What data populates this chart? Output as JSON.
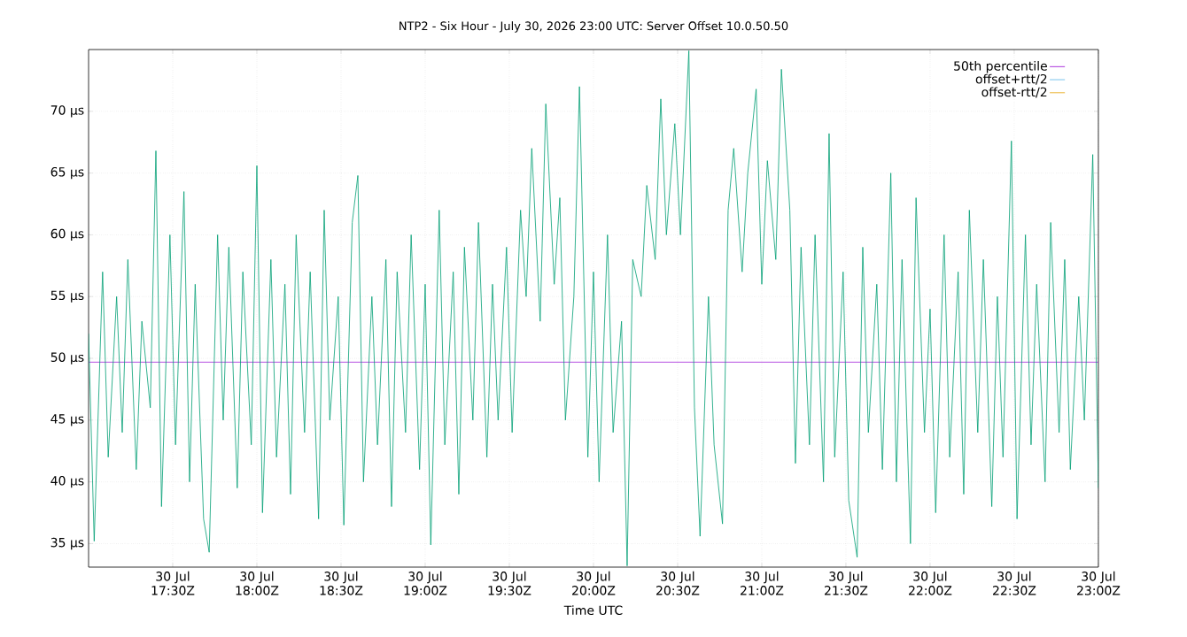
{
  "chart_data": {
    "type": "line",
    "title": "NTP2 - Six Hour - July 30, 2026 23:00 UTC: Server Offset 10.0.50.50",
    "xlabel": "Time UTC",
    "x": [
      "2026-07-30T17:00",
      "2026-07-30T17:02",
      "2026-07-30T17:05",
      "2026-07-30T17:07",
      "2026-07-30T17:10",
      "2026-07-30T17:12",
      "2026-07-30T17:14",
      "2026-07-30T17:17",
      "2026-07-30T17:19",
      "2026-07-30T17:22",
      "2026-07-30T17:24",
      "2026-07-30T17:26",
      "2026-07-30T17:29",
      "2026-07-30T17:31",
      "2026-07-30T17:34",
      "2026-07-30T17:36",
      "2026-07-30T17:38",
      "2026-07-30T17:41",
      "2026-07-30T17:43",
      "2026-07-30T17:46",
      "2026-07-30T17:48",
      "2026-07-30T17:50",
      "2026-07-30T17:53",
      "2026-07-30T17:55",
      "2026-07-30T17:58",
      "2026-07-30T18:00",
      "2026-07-30T18:02",
      "2026-07-30T18:05",
      "2026-07-30T18:07",
      "2026-07-30T18:10",
      "2026-07-30T18:12",
      "2026-07-30T18:14",
      "2026-07-30T18:17",
      "2026-07-30T18:19",
      "2026-07-30T18:22",
      "2026-07-30T18:24",
      "2026-07-30T18:26",
      "2026-07-30T18:29",
      "2026-07-30T18:31",
      "2026-07-30T18:34",
      "2026-07-30T18:36",
      "2026-07-30T18:38",
      "2026-07-30T18:41",
      "2026-07-30T18:43",
      "2026-07-30T18:46",
      "2026-07-30T18:48",
      "2026-07-30T18:50",
      "2026-07-30T18:53",
      "2026-07-30T18:55",
      "2026-07-30T18:58",
      "2026-07-30T19:00",
      "2026-07-30T19:02",
      "2026-07-30T19:05",
      "2026-07-30T19:07",
      "2026-07-30T19:10",
      "2026-07-30T19:12",
      "2026-07-30T19:14",
      "2026-07-30T19:17",
      "2026-07-30T19:19",
      "2026-07-30T19:22",
      "2026-07-30T19:24",
      "2026-07-30T19:26",
      "2026-07-30T19:29",
      "2026-07-30T19:31",
      "2026-07-30T19:34",
      "2026-07-30T19:36",
      "2026-07-30T19:38",
      "2026-07-30T19:41",
      "2026-07-30T19:43",
      "2026-07-30T19:46",
      "2026-07-30T19:48",
      "2026-07-30T19:50",
      "2026-07-30T19:53",
      "2026-07-30T19:55",
      "2026-07-30T19:58",
      "2026-07-30T20:00",
      "2026-07-30T20:02",
      "2026-07-30T20:05",
      "2026-07-30T20:07",
      "2026-07-30T20:10",
      "2026-07-30T20:12",
      "2026-07-30T20:14",
      "2026-07-30T20:17",
      "2026-07-30T20:19",
      "2026-07-30T20:22",
      "2026-07-30T20:24",
      "2026-07-30T20:26",
      "2026-07-30T20:29",
      "2026-07-30T20:31",
      "2026-07-30T20:34",
      "2026-07-30T20:36",
      "2026-07-30T20:38",
      "2026-07-30T20:41",
      "2026-07-30T20:43",
      "2026-07-30T20:46",
      "2026-07-30T20:48",
      "2026-07-30T20:50",
      "2026-07-30T20:53",
      "2026-07-30T20:55",
      "2026-07-30T20:58",
      "2026-07-30T21:00",
      "2026-07-30T21:02",
      "2026-07-30T21:05",
      "2026-07-30T21:07",
      "2026-07-30T21:10",
      "2026-07-30T21:12",
      "2026-07-30T21:14",
      "2026-07-30T21:17",
      "2026-07-30T21:19",
      "2026-07-30T21:22",
      "2026-07-30T21:24",
      "2026-07-30T21:26",
      "2026-07-30T21:29",
      "2026-07-30T21:31",
      "2026-07-30T21:34",
      "2026-07-30T21:36",
      "2026-07-30T21:38",
      "2026-07-30T21:41",
      "2026-07-30T21:43",
      "2026-07-30T21:46",
      "2026-07-30T21:48",
      "2026-07-30T21:50",
      "2026-07-30T21:53",
      "2026-07-30T21:55",
      "2026-07-30T21:58",
      "2026-07-30T22:00",
      "2026-07-30T22:02",
      "2026-07-30T22:05",
      "2026-07-30T22:07",
      "2026-07-30T22:10",
      "2026-07-30T22:12",
      "2026-07-30T22:14",
      "2026-07-30T22:17",
      "2026-07-30T22:19",
      "2026-07-30T22:22",
      "2026-07-30T22:24",
      "2026-07-30T22:26",
      "2026-07-30T22:29",
      "2026-07-30T22:31",
      "2026-07-30T22:34",
      "2026-07-30T22:36",
      "2026-07-30T22:38",
      "2026-07-30T22:41",
      "2026-07-30T22:43",
      "2026-07-30T22:46",
      "2026-07-30T22:48",
      "2026-07-30T22:50",
      "2026-07-30T22:53",
      "2026-07-30T22:55",
      "2026-07-30T22:58",
      "2026-07-30T23:00"
    ],
    "series": [
      {
        "name": "50th percentile",
        "color": "#9400d3",
        "x": [
          "2026-07-30T17:00",
          "2026-07-30T23:00"
        ],
        "values": [
          49.7,
          49.7
        ]
      },
      {
        "color": "#009e73",
        "values": [
          52,
          35.2,
          57,
          42,
          55,
          44,
          58,
          41,
          53,
          46,
          66.8,
          38,
          60,
          43,
          63.5,
          40,
          56,
          37,
          34.3,
          60,
          45,
          59,
          39.5,
          57,
          43,
          65.6,
          37.5,
          58,
          42,
          56,
          39,
          60,
          44,
          57,
          37,
          62,
          45,
          55,
          36.5,
          61,
          64.8,
          40,
          55,
          43,
          58,
          38,
          57,
          44,
          60,
          41,
          56,
          34.9,
          62,
          43,
          57,
          39,
          59,
          45,
          61,
          42,
          56,
          45,
          59,
          44,
          62,
          55,
          67,
          53,
          70.6,
          56,
          63,
          45,
          55,
          72,
          42,
          57,
          40,
          60,
          44,
          53,
          33.2,
          58,
          55,
          64,
          58,
          71,
          60,
          69,
          60,
          74.9,
          46,
          35.6,
          55,
          43,
          36.6,
          62,
          67,
          57,
          65,
          71.8,
          56,
          66,
          58,
          73.4,
          62,
          41.5,
          59,
          43,
          60,
          40,
          68.2,
          42,
          57,
          38.5,
          33.9,
          59,
          44,
          56,
          41,
          65,
          40,
          58,
          35,
          63,
          44,
          54,
          37.5,
          60,
          42,
          57,
          39,
          62,
          44,
          58,
          38,
          55,
          42,
          67.6,
          37,
          60,
          43,
          56,
          40,
          61,
          44,
          58,
          41,
          55,
          45,
          66.5,
          39.5
        ]
      },
      {
        "name": "offset+rtt/2",
        "color": "#56b4e9",
        "values": [
          null,
          null,
          null,
          null,
          null,
          null,
          null,
          null,
          null,
          null,
          null,
          null,
          null,
          null,
          null,
          null,
          null,
          null,
          null,
          null,
          null,
          null,
          null,
          null,
          null,
          null,
          null,
          null,
          null,
          null,
          null,
          null,
          null,
          null,
          null,
          null,
          null,
          null,
          null,
          null,
          null,
          null,
          null,
          null,
          null,
          null,
          null,
          null,
          null,
          null,
          null,
          null,
          null,
          null,
          null,
          null,
          null,
          null,
          null,
          null,
          null,
          null,
          null,
          null,
          null,
          null,
          null,
          null,
          null,
          null,
          null,
          null,
          null,
          null,
          null,
          null,
          null,
          null,
          null,
          null,
          null,
          null,
          null,
          null,
          null,
          null,
          null,
          null,
          null,
          null,
          null,
          null,
          null,
          null,
          null,
          null,
          null,
          null,
          null,
          null,
          null,
          null,
          null,
          null,
          null,
          null,
          null,
          null,
          null,
          null,
          null,
          null,
          null,
          null,
          null,
          null,
          null,
          null,
          null,
          null,
          null,
          null,
          null,
          null,
          null,
          null,
          null,
          null,
          null,
          null,
          null,
          null,
          null,
          null,
          null,
          null,
          null,
          null,
          null,
          null,
          null,
          null,
          null,
          null,
          null,
          null,
          null,
          null,
          null,
          null,
          null
        ]
      },
      {
        "name": "offset-rtt/2",
        "color": "#e69f00",
        "values": [
          null,
          null,
          null,
          null,
          null,
          null,
          null,
          null,
          null,
          null,
          null,
          null,
          null,
          null,
          null,
          null,
          null,
          null,
          null,
          null,
          null,
          null,
          null,
          null,
          null,
          null,
          null,
          null,
          null,
          null,
          null,
          null,
          null,
          null,
          null,
          null,
          null,
          null,
          null,
          null,
          null,
          null,
          null,
          null,
          null,
          null,
          null,
          null,
          null,
          null,
          null,
          null,
          null,
          null,
          null,
          null,
          null,
          null,
          null,
          null,
          null,
          null,
          null,
          null,
          null,
          null,
          null,
          null,
          null,
          null,
          null,
          null,
          null,
          null,
          null,
          null,
          null,
          null,
          null,
          null,
          null,
          null,
          null,
          null,
          null,
          null,
          null,
          null,
          null,
          null,
          null,
          null,
          null,
          null,
          null,
          null,
          null,
          null,
          null,
          null,
          null,
          null,
          null,
          null,
          null,
          null,
          null,
          null,
          null,
          null,
          null,
          null,
          null,
          null,
          null,
          null,
          null,
          null,
          null,
          null,
          null,
          null,
          null,
          null,
          null,
          null,
          null,
          null,
          null,
          null,
          null,
          null,
          null,
          null,
          null,
          null,
          null,
          null,
          null,
          null,
          null,
          null,
          null,
          null,
          null,
          null,
          null,
          null,
          null,
          null,
          null
        ]
      }
    ],
    "xlim": [
      "2026-07-30T17:00",
      "2026-07-30T23:00"
    ],
    "xticks": [
      {
        "value": "2026-07-30T17:30",
        "label": "30 Jul 17:30Z"
      },
      {
        "value": "2026-07-30T18:00",
        "label": "30 Jul 18:00Z"
      },
      {
        "value": "2026-07-30T18:30",
        "label": "30 Jul 18:30Z"
      },
      {
        "value": "2026-07-30T19:00",
        "label": "30 Jul 19:00Z"
      },
      {
        "value": "2026-07-30T19:30",
        "label": "30 Jul 19:30Z"
      },
      {
        "value": "2026-07-30T20:00",
        "label": "30 Jul 20:00Z"
      },
      {
        "value": "2026-07-30T20:30",
        "label": "30 Jul 20:30Z"
      },
      {
        "value": "2026-07-30T21:00",
        "label": "30 Jul 21:00Z"
      },
      {
        "value": "2026-07-30T21:30",
        "label": "30 Jul 21:30Z"
      },
      {
        "value": "2026-07-30T22:00",
        "label": "30 Jul 22:00Z"
      },
      {
        "value": "2026-07-30T22:30",
        "label": "30 Jul 22:30Z"
      },
      {
        "value": "2026-07-30T23:00",
        "label": "30 Jul 23:00Z"
      }
    ],
    "ylim": [
      33.1,
      75
    ],
    "yticks": [
      {
        "value": 35,
        "label": "35 µs"
      },
      {
        "value": 40,
        "label": "40 µs"
      },
      {
        "value": 45,
        "label": "45 µs"
      },
      {
        "value": 50,
        "label": "50 µs"
      },
      {
        "value": 55,
        "label": "55 µs"
      },
      {
        "value": 60,
        "label": "60 µs"
      },
      {
        "value": 65,
        "label": "65 µs"
      },
      {
        "value": 70,
        "label": "70 µs"
      }
    ],
    "grid": true,
    "legend": "top right",
    "marker": "none",
    "line_style": "solid"
  }
}
